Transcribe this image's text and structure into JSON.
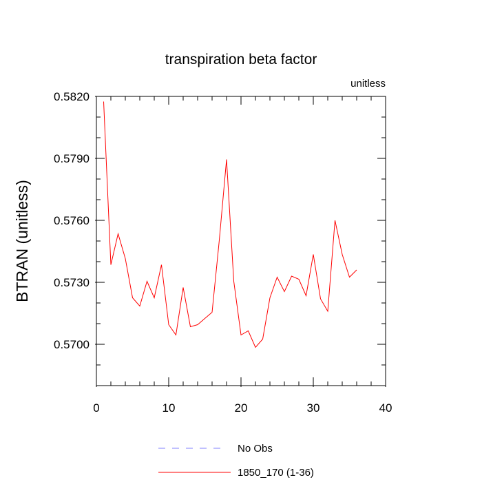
{
  "chart_data": {
    "type": "line",
    "title": "transpiration beta factor",
    "units_label": "unitless",
    "xlabel": "",
    "ylabel": "BTRAN  (unitless)",
    "xlim": [
      0,
      40
    ],
    "ylim": [
      0.568,
      0.582
    ],
    "x_ticks": [
      0,
      10,
      20,
      30,
      40
    ],
    "x_tick_labels": [
      "0",
      "10",
      "20",
      "30",
      "40"
    ],
    "y_ticks": [
      0.57,
      0.573,
      0.576,
      0.579,
      0.582
    ],
    "y_tick_labels": [
      "0.5700",
      "0.5730",
      "0.5760",
      "0.5790",
      "0.5820"
    ],
    "grid": false,
    "legend_position": "bottom",
    "series": [
      {
        "name": "No Obs",
        "color": "#8080ff",
        "dash": "dashed",
        "x": [],
        "y": []
      },
      {
        "name": "1850_170 (1-36)",
        "color": "#ff0000",
        "dash": "solid",
        "x": [
          1,
          2,
          3,
          4,
          5,
          6,
          7,
          8,
          9,
          10,
          11,
          12,
          13,
          14,
          15,
          16,
          17,
          18,
          19,
          20,
          21,
          22,
          23,
          24,
          25,
          26,
          27,
          28,
          29,
          30,
          31,
          32,
          33,
          34,
          35,
          36
        ],
        "y": [
          0.58175,
          0.57385,
          0.57535,
          0.57415,
          0.57225,
          0.57185,
          0.57305,
          0.57225,
          0.57385,
          0.57095,
          0.57045,
          0.57275,
          0.57085,
          0.57095,
          0.57125,
          0.57155,
          0.57505,
          0.57895,
          0.57305,
          0.57045,
          0.57065,
          0.56985,
          0.57025,
          0.57225,
          0.57325,
          0.57255,
          0.5733,
          0.57315,
          0.57235,
          0.57435,
          0.5722,
          0.5716,
          0.576,
          0.57435,
          0.57325,
          0.5736
        ]
      }
    ]
  }
}
